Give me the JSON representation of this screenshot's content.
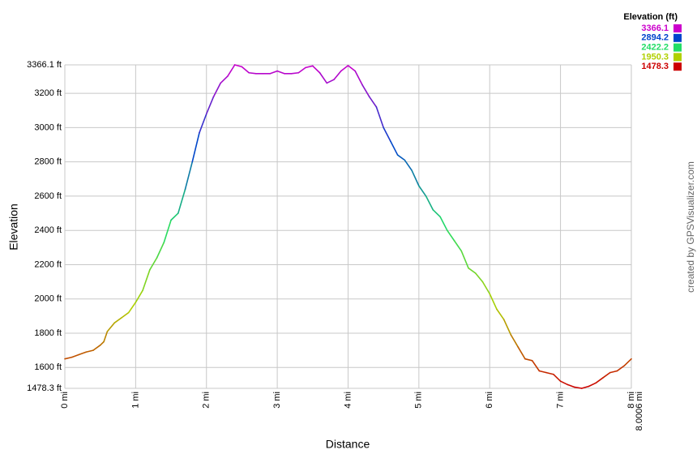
{
  "chart_data": {
    "type": "line",
    "legend": {
      "title": "Elevation (ft)",
      "entries": [
        {
          "value": 3366.1,
          "color": "#cc00cc"
        },
        {
          "value": 2894.2,
          "color": "#0044cc"
        },
        {
          "value": 2422.2,
          "color": "#22dd66"
        },
        {
          "value": 1950.3,
          "color": "#b0d000"
        },
        {
          "value": 1478.3,
          "color": "#cc0000"
        }
      ]
    },
    "x_label": "Distance",
    "y_label": "Elevation",
    "credit": "created by GPSVisualizer.com",
    "grid": true,
    "xlim": [
      0,
      8.0006
    ],
    "ylim": [
      1478.3,
      3366.1
    ],
    "xticks": [
      {
        "value": 0,
        "label": "0 mi"
      },
      {
        "value": 1,
        "label": "1 mi"
      },
      {
        "value": 2,
        "label": "2 mi"
      },
      {
        "value": 3,
        "label": "3 mi"
      },
      {
        "value": 4,
        "label": "4 mi"
      },
      {
        "value": 5,
        "label": "5 mi"
      },
      {
        "value": 6,
        "label": "6 mi"
      },
      {
        "value": 7,
        "label": "7 mi"
      },
      {
        "value": 8,
        "label": "8 mi"
      },
      {
        "value": 8.0006,
        "label": "8.0006 mi"
      }
    ],
    "yticks": [
      {
        "value": 1478.3,
        "label": "1478.3 ft"
      },
      {
        "value": 1600,
        "label": "1600 ft"
      },
      {
        "value": 1800,
        "label": "1800 ft"
      },
      {
        "value": 2000,
        "label": "2000 ft"
      },
      {
        "value": 2200,
        "label": "2200 ft"
      },
      {
        "value": 2400,
        "label": "2400 ft"
      },
      {
        "value": 2600,
        "label": "2600 ft"
      },
      {
        "value": 2800,
        "label": "2800 ft"
      },
      {
        "value": 3000,
        "label": "3000 ft"
      },
      {
        "value": 3200,
        "label": "3200 ft"
      },
      {
        "value": 3366.1,
        "label": "3366.1 ft"
      }
    ],
    "x": [
      0,
      0.1,
      0.2,
      0.3,
      0.4,
      0.5,
      0.55,
      0.6,
      0.7,
      0.8,
      0.9,
      1.0,
      1.1,
      1.2,
      1.3,
      1.4,
      1.5,
      1.6,
      1.7,
      1.8,
      1.9,
      2.0,
      2.1,
      2.2,
      2.3,
      2.4,
      2.5,
      2.6,
      2.7,
      2.8,
      2.9,
      3.0,
      3.1,
      3.2,
      3.3,
      3.4,
      3.5,
      3.6,
      3.7,
      3.8,
      3.9,
      4.0,
      4.1,
      4.2,
      4.3,
      4.4,
      4.5,
      4.6,
      4.7,
      4.8,
      4.9,
      5.0,
      5.1,
      5.2,
      5.3,
      5.4,
      5.5,
      5.6,
      5.7,
      5.8,
      5.9,
      6.0,
      6.1,
      6.2,
      6.3,
      6.4,
      6.5,
      6.6,
      6.7,
      6.8,
      6.9,
      7.0,
      7.1,
      7.2,
      7.3,
      7.4,
      7.5,
      7.6,
      7.7,
      7.8,
      7.9,
      8.0006
    ],
    "values": [
      1650,
      1660,
      1675,
      1690,
      1700,
      1730,
      1750,
      1810,
      1860,
      1890,
      1920,
      1980,
      2050,
      2170,
      2240,
      2330,
      2460,
      2500,
      2640,
      2800,
      2970,
      3080,
      3180,
      3260,
      3300,
      3366.1,
      3355,
      3320,
      3315,
      3315,
      3315,
      3330,
      3315,
      3315,
      3320,
      3350,
      3360,
      3320,
      3260,
      3280,
      3330,
      3362,
      3330,
      3250,
      3180,
      3120,
      3000,
      2920,
      2840,
      2810,
      2750,
      2660,
      2600,
      2520,
      2480,
      2400,
      2340,
      2280,
      2180,
      2150,
      2100,
      2030,
      1940,
      1880,
      1790,
      1720,
      1650,
      1640,
      1580,
      1570,
      1560,
      1520,
      1500,
      1485,
      1478.3,
      1490,
      1510,
      1540,
      1570,
      1580,
      1610,
      1650
    ]
  }
}
